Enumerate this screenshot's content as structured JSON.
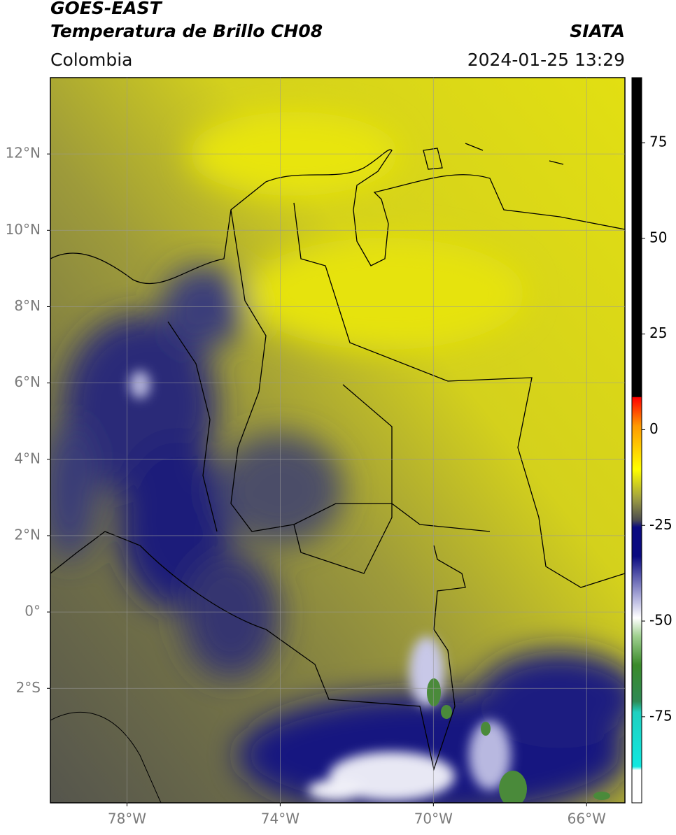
{
  "header": {
    "satellite": "GOES-EAST",
    "product": "Temperatura de Brillo CH08",
    "source": "SIATA",
    "region": "Colombia",
    "datetime": "2024-01-25 13:29"
  },
  "map": {
    "xlim": [
      -80,
      -65
    ],
    "ylim": [
      -5,
      14
    ],
    "xticks": [
      {
        "value": -78,
        "label": "78°W"
      },
      {
        "value": -74,
        "label": "74°W"
      },
      {
        "value": -70,
        "label": "70°W"
      },
      {
        "value": -66,
        "label": "66°W"
      }
    ],
    "yticks": [
      {
        "value": 12,
        "label": "12°N"
      },
      {
        "value": 10,
        "label": "10°N"
      },
      {
        "value": 8,
        "label": "8°N"
      },
      {
        "value": 6,
        "label": "6°N"
      },
      {
        "value": 4,
        "label": "4°N"
      },
      {
        "value": 2,
        "label": "2°N"
      },
      {
        "value": 0,
        "label": "0°"
      },
      {
        "value": -2,
        "label": "2°S"
      }
    ],
    "grid": true
  },
  "colorbar": {
    "lim": [
      -97.5,
      92
    ],
    "ticks": [
      75,
      50,
      25,
      0,
      -25,
      -50,
      -75
    ]
  }
}
